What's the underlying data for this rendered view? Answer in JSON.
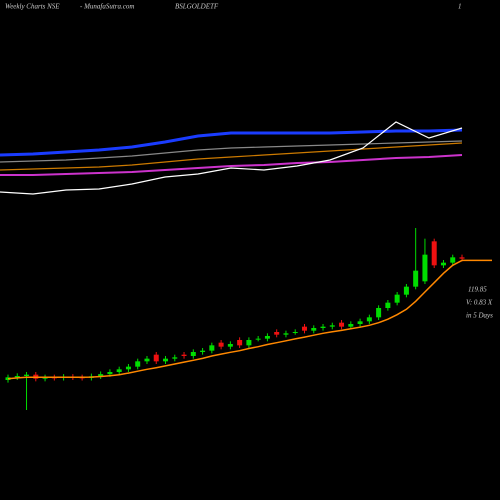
{
  "header": {
    "site": "Weekly Charts NSE",
    "source": "- MunafaSutra.com",
    "symbol": "BSLGOLDETF",
    "page": "1"
  },
  "chart_data": [
    {
      "type": "line",
      "ylim": [
        0,
        100
      ],
      "series": [
        {
          "color": "#888888",
          "values": [
            48,
            49,
            50,
            52,
            54,
            57,
            60,
            62,
            63,
            64,
            65,
            66,
            67,
            68,
            69
          ]
        },
        {
          "color": "#cc7a00",
          "values": [
            40,
            41,
            42,
            43,
            45,
            48,
            51,
            53,
            55,
            57,
            59,
            61,
            63,
            65,
            67
          ]
        },
        {
          "color": "#cc33cc",
          "values": [
            35,
            35,
            36,
            37,
            38,
            40,
            42,
            44,
            45,
            47,
            48,
            50,
            52,
            53,
            55
          ]
        },
        {
          "color": "#1a3cff",
          "values": [
            55,
            56,
            58,
            60,
            63,
            68,
            74,
            77,
            77,
            77,
            77,
            78,
            79,
            79,
            80
          ]
        },
        {
          "color": "#ffffff",
          "values": [
            18,
            16,
            20,
            21,
            26,
            33,
            36,
            42,
            40,
            44,
            50,
            62,
            88,
            72,
            82
          ]
        }
      ]
    },
    {
      "type": "candlestick",
      "ylim": [
        60,
        135
      ],
      "up_color": "#00dd00",
      "down_color": "#ee1111",
      "open": [
        75,
        76,
        76.5,
        77,
        75.5,
        76,
        75.8,
        76.2,
        76,
        75.8,
        76.4,
        77.2,
        78,
        79,
        80,
        82,
        84.5,
        82,
        83,
        84.5,
        84,
        85.5,
        86,
        89,
        87.5,
        90,
        88,
        90.5,
        90.5,
        93,
        92,
        93,
        95,
        93.5,
        94.5,
        95,
        96.5,
        95,
        96,
        97,
        98.5,
        102,
        104,
        107,
        110,
        112,
        127,
        118,
        119,
        121
      ],
      "high": [
        77,
        77.5,
        78,
        78,
        77,
        77,
        77.2,
        77.2,
        77,
        77.4,
        78.2,
        79,
        80,
        81,
        83,
        84,
        85.5,
        84,
        84.5,
        85.5,
        86.5,
        87,
        89,
        90,
        89.5,
        91,
        91,
        91.5,
        92.5,
        94,
        93.5,
        94,
        96,
        95.5,
        96,
        96.5,
        97.5,
        97,
        98,
        99.5,
        103,
        105,
        108,
        111,
        132,
        128,
        128,
        120,
        122,
        122
      ],
      "low": [
        74,
        75,
        63.75,
        74.5,
        74.5,
        74.8,
        74.8,
        75,
        74.8,
        74.8,
        75.4,
        76.2,
        77,
        78,
        79,
        81,
        81,
        81,
        82,
        83,
        83,
        84.5,
        85,
        86.5,
        86.5,
        87,
        87,
        89.5,
        89.5,
        91,
        91,
        92,
        92.5,
        92.5,
        93.5,
        94,
        94,
        94,
        95,
        96,
        97.5,
        101,
        103,
        106,
        109,
        111,
        117,
        117,
        118,
        119.5
      ],
      "close": [
        76,
        76.5,
        77,
        75.5,
        76,
        75.8,
        76.2,
        76,
        75.8,
        76.4,
        77.2,
        78,
        79,
        80,
        82,
        83,
        82,
        83,
        83.5,
        84,
        85.5,
        86,
        88,
        87.5,
        88.5,
        88,
        90,
        90.5,
        91.5,
        92,
        92.5,
        93,
        93.5,
        94.5,
        95,
        95.5,
        95,
        96,
        97,
        98.5,
        102,
        104,
        107,
        110,
        116,
        122,
        118,
        119,
        121,
        120.5
      ],
      "ma": {
        "color": "#ff8800",
        "values": [
          75.5,
          75.8,
          76,
          76,
          76,
          76,
          76,
          76,
          76,
          76.1,
          76.3,
          76.6,
          77,
          77.6,
          78.3,
          79,
          79.6,
          80.3,
          81,
          81.7,
          82.4,
          83.1,
          84,
          84.7,
          85.4,
          86,
          86.8,
          87.5,
          88.3,
          89,
          89.7,
          90.4,
          91.1,
          91.8,
          92.5,
          93.1,
          93.6,
          94.2,
          94.8,
          95.5,
          96.5,
          97.8,
          99.5,
          101.5,
          104.5,
          108,
          111.5,
          115,
          118,
          119.85
        ]
      },
      "annotations": [
        "V: 0.83 X",
        "in 5 Days"
      ]
    }
  ]
}
